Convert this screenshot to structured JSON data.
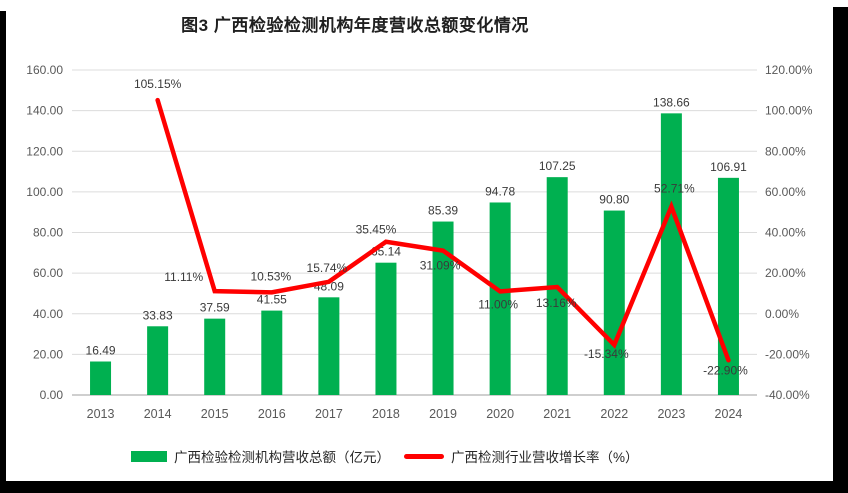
{
  "colors": {
    "bar": "#00B050",
    "line": "#FF0000",
    "grid": "#DCDCDC",
    "axis_line": "#BFBFBF",
    "axis_text": "#595959",
    "data_label_text": "#3A3A3A",
    "title_text": "#1F1F1F",
    "frame": "#000000"
  },
  "chart_data": {
    "type": "bar+line combo",
    "title": "图3 广西检验检测机构年度营收总额变化情况",
    "categories": [
      "2013",
      "2014",
      "2015",
      "2016",
      "2017",
      "2018",
      "2019",
      "2020",
      "2021",
      "2022",
      "2023",
      "2024"
    ],
    "series": [
      {
        "name": "广西检验检测机构营收总额（亿元）",
        "type": "bar",
        "axis": "left",
        "values": [
          16.49,
          33.83,
          37.59,
          41.55,
          48.09,
          65.14,
          85.39,
          94.78,
          107.25,
          90.8,
          138.66,
          106.91
        ],
        "labels": [
          "16.49",
          "33.83",
          "37.59",
          "41.55",
          "48.09",
          "65.14",
          "85.39",
          "94.78",
          "107.25",
          "90.80",
          "138.66",
          "106.91"
        ]
      },
      {
        "name": "广西检测行业营收增长率（%）",
        "type": "line",
        "axis": "right",
        "values": [
          null,
          105.15,
          11.11,
          10.53,
          15.74,
          35.45,
          31.09,
          11.0,
          13.16,
          -15.34,
          52.71,
          -22.9
        ],
        "labels": [
          null,
          "105.15%",
          "11.11%",
          "10.53%",
          "15.74%",
          "35.45%",
          "31.09%",
          "11.00%",
          "13.16%",
          "-15.34%",
          "52.71%",
          "-22.90%"
        ]
      }
    ],
    "left_axis": {
      "min": 0,
      "max": 160,
      "step": 20,
      "ticks": [
        "0.00",
        "20.00",
        "40.00",
        "60.00",
        "80.00",
        "100.00",
        "120.00",
        "140.00",
        "160.00"
      ]
    },
    "right_axis": {
      "min": -40,
      "max": 120,
      "step": 20,
      "ticks": [
        "-40.00%",
        "-20.00%",
        "0.00%",
        "20.00%",
        "40.00%",
        "60.00%",
        "80.00%",
        "100.00%",
        "120.00%"
      ]
    },
    "grid": true,
    "legend_position": "bottom"
  }
}
